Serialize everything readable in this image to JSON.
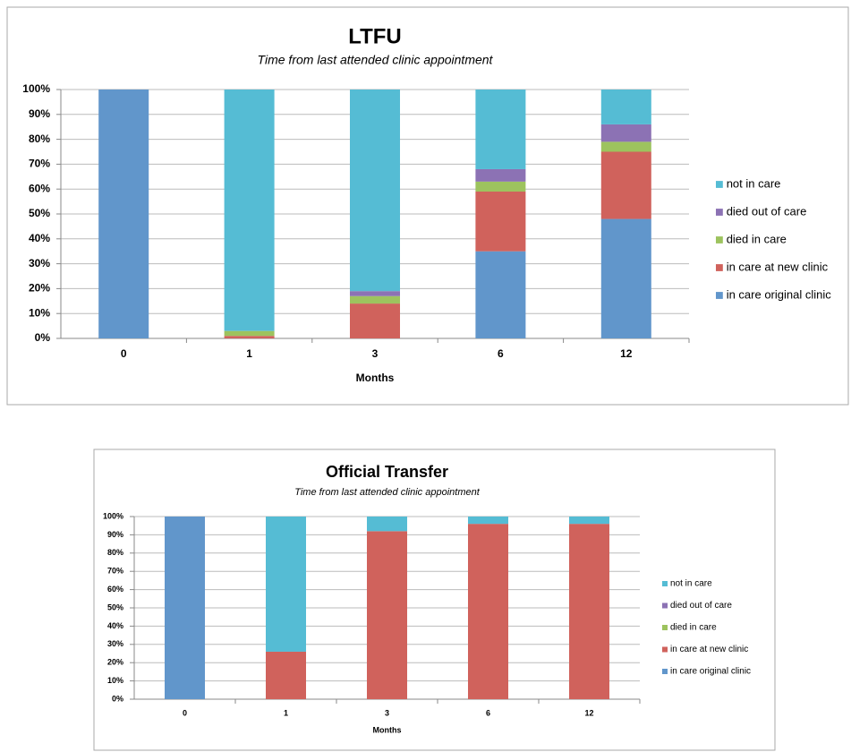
{
  "chart_data": [
    {
      "type": "bar",
      "stacked": true,
      "title": "LTFU",
      "subtitle": "Time from last attended clinic appointment",
      "x_label": "Months",
      "categories": [
        "0",
        "1",
        "3",
        "6",
        "12"
      ],
      "series": [
        {
          "name": "in care original clinic",
          "color": "#6196cb",
          "values": [
            100,
            0,
            0,
            35,
            48
          ]
        },
        {
          "name": "in care at new clinic",
          "color": "#d0625c",
          "values": [
            0,
            1,
            14,
            24,
            27
          ]
        },
        {
          "name": "died in care",
          "color": "#9dc35e",
          "values": [
            0,
            2,
            3,
            4,
            4
          ]
        },
        {
          "name": "died out of care",
          "color": "#8c72b4",
          "values": [
            0,
            0,
            2,
            5,
            7
          ]
        },
        {
          "name": "not in care",
          "color": "#55bcd4",
          "values": [
            0,
            97,
            81,
            32,
            14
          ]
        }
      ],
      "ylim": [
        0,
        100
      ],
      "yticks": [
        {
          "value": 0,
          "label": "0%"
        },
        {
          "value": 10,
          "label": "10%"
        },
        {
          "value": 20,
          "label": "20%"
        },
        {
          "value": 30,
          "label": "30%"
        },
        {
          "value": 40,
          "label": "40%"
        },
        {
          "value": 50,
          "label": "50%"
        },
        {
          "value": 60,
          "label": "60%"
        },
        {
          "value": 70,
          "label": "70%"
        },
        {
          "value": 80,
          "label": "80%"
        },
        {
          "value": 90,
          "label": "90%"
        },
        {
          "value": 100,
          "label": "100%"
        }
      ],
      "grid": true,
      "legend": "right"
    },
    {
      "type": "bar",
      "stacked": true,
      "title": "Official Transfer",
      "subtitle": "Time from last attended clinic appointment",
      "x_label": "Months",
      "categories": [
        "0",
        "1",
        "3",
        "6",
        "12"
      ],
      "series": [
        {
          "name": "in care original clinic",
          "color": "#6196cb",
          "values": [
            100,
            0,
            0,
            0,
            0
          ]
        },
        {
          "name": "in care at new clinic",
          "color": "#d0625c",
          "values": [
            0,
            26,
            92,
            96,
            96
          ]
        },
        {
          "name": "died in care",
          "color": "#9dc35e",
          "values": [
            0,
            0,
            0,
            0,
            0
          ]
        },
        {
          "name": "died out of care",
          "color": "#8c72b4",
          "values": [
            0,
            0,
            0,
            0,
            0
          ]
        },
        {
          "name": "not in care",
          "color": "#55bcd4",
          "values": [
            0,
            74,
            8,
            4,
            4
          ]
        }
      ],
      "ylim": [
        0,
        100
      ],
      "yticks": [
        {
          "value": 0,
          "label": "0%"
        },
        {
          "value": 10,
          "label": "10%"
        },
        {
          "value": 20,
          "label": "20%"
        },
        {
          "value": 30,
          "label": "30%"
        },
        {
          "value": 40,
          "label": "40%"
        },
        {
          "value": 50,
          "label": "50%"
        },
        {
          "value": 60,
          "label": "60%"
        },
        {
          "value": 70,
          "label": "70%"
        },
        {
          "value": 80,
          "label": "80%"
        },
        {
          "value": 90,
          "label": "90%"
        },
        {
          "value": 100,
          "label": "100%"
        }
      ],
      "grid": true,
      "legend": "right"
    }
  ]
}
